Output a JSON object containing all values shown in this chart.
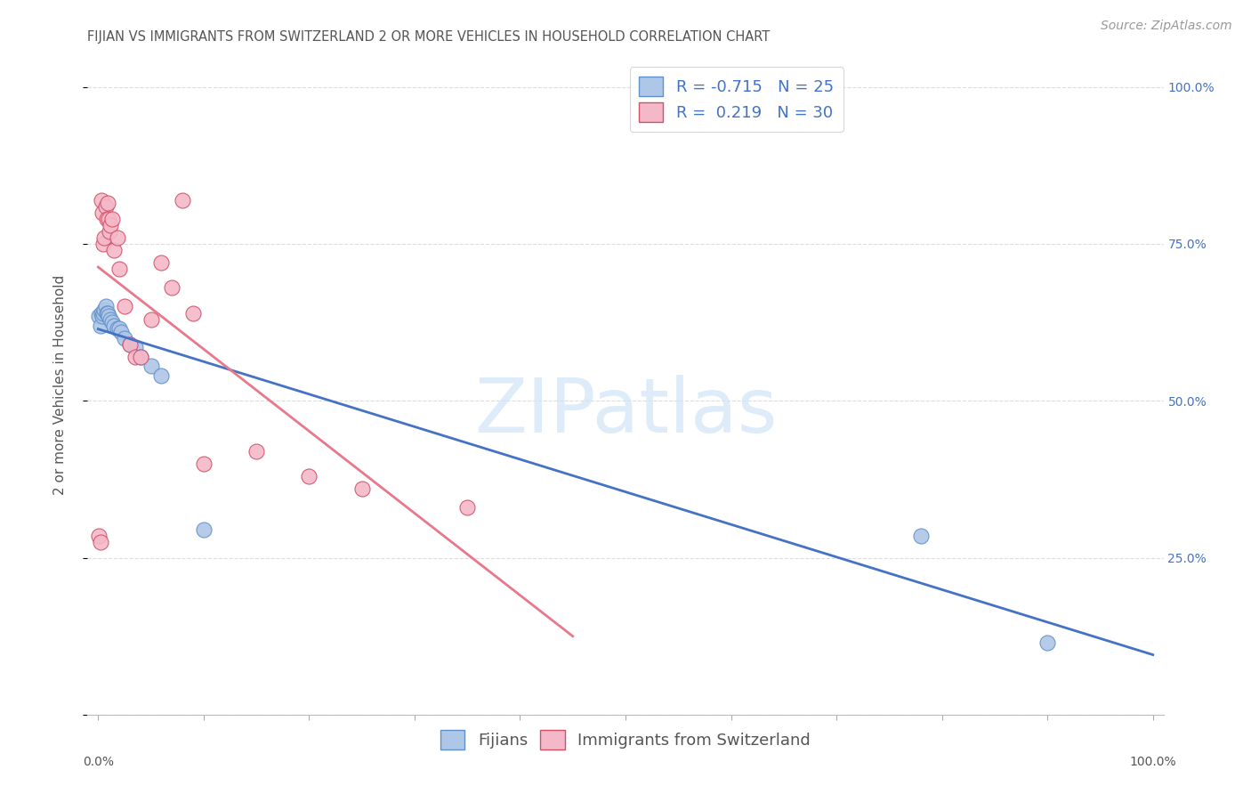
{
  "title": "FIJIAN VS IMMIGRANTS FROM SWITZERLAND 2 OR MORE VEHICLES IN HOUSEHOLD CORRELATION CHART",
  "source": "Source: ZipAtlas.com",
  "ylabel": "2 or more Vehicles in Household",
  "fijian_R": -0.715,
  "fijian_N": 25,
  "swiss_R": 0.219,
  "swiss_N": 30,
  "fijian_color": "#aec6e8",
  "swiss_color": "#f4b8c8",
  "fijian_line_color": "#4472c4",
  "swiss_line_color": "#e8788a",
  "fijian_edge_color": "#6090c8",
  "swiss_edge_color": "#d05068",
  "watermark_color": "#d0e4f8",
  "watermark_text": "ZIPatlas",
  "background_color": "#ffffff",
  "grid_color": "#dddddd",
  "right_axis_color": "#4472c4",
  "title_color": "#555555",
  "source_color": "#999999",
  "fijian_x": [
    0.001,
    0.002,
    0.003,
    0.004,
    0.005,
    0.006,
    0.007,
    0.008,
    0.009,
    0.01,
    0.012,
    0.013,
    0.015,
    0.018,
    0.02,
    0.022,
    0.025,
    0.03,
    0.035,
    0.04,
    0.05,
    0.06,
    0.1,
    0.78,
    0.9
  ],
  "fijian_y": [
    0.635,
    0.62,
    0.64,
    0.635,
    0.64,
    0.645,
    0.65,
    0.64,
    0.64,
    0.635,
    0.63,
    0.625,
    0.62,
    0.615,
    0.615,
    0.61,
    0.6,
    0.59,
    0.585,
    0.57,
    0.555,
    0.54,
    0.295,
    0.285,
    0.115
  ],
  "swiss_x": [
    0.001,
    0.002,
    0.003,
    0.004,
    0.005,
    0.006,
    0.007,
    0.008,
    0.009,
    0.01,
    0.011,
    0.012,
    0.013,
    0.015,
    0.018,
    0.02,
    0.025,
    0.03,
    0.035,
    0.04,
    0.05,
    0.06,
    0.07,
    0.08,
    0.09,
    0.1,
    0.15,
    0.2,
    0.25,
    0.35
  ],
  "swiss_y": [
    0.285,
    0.275,
    0.82,
    0.8,
    0.75,
    0.76,
    0.81,
    0.79,
    0.815,
    0.79,
    0.77,
    0.78,
    0.79,
    0.74,
    0.76,
    0.71,
    0.65,
    0.59,
    0.57,
    0.57,
    0.63,
    0.72,
    0.68,
    0.82,
    0.64,
    0.4,
    0.42,
    0.38,
    0.36,
    0.33
  ],
  "ylim_min": 0.0,
  "ylim_max": 1.05,
  "xlim_min": -0.01,
  "xlim_max": 1.01,
  "y_ticks": [
    0.0,
    0.25,
    0.5,
    0.75,
    1.0
  ],
  "y_tick_labels": [
    "",
    "25.0%",
    "50.0%",
    "75.0%",
    "100.0%"
  ],
  "title_fontsize": 10.5,
  "label_fontsize": 11,
  "tick_fontsize": 10,
  "legend_fontsize": 13,
  "source_fontsize": 10
}
